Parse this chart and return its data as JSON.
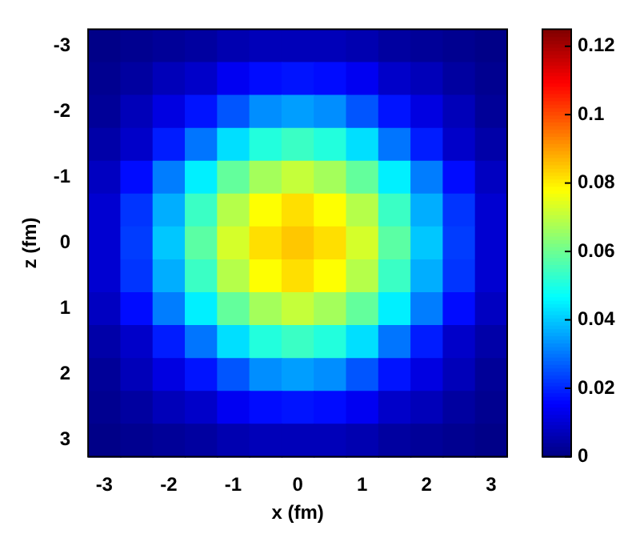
{
  "chart_data": {
    "type": "heatmap",
    "xlabel": "x (fm)",
    "ylabel": "z (fm)",
    "categories": [
      "-3",
      null,
      "-2",
      null,
      "-1",
      null,
      "0",
      null,
      "1",
      null,
      "2",
      null,
      "3"
    ],
    "y_categories": [
      "-3",
      null,
      "-2",
      null,
      "-1",
      null,
      "0",
      null,
      "1",
      null,
      "2",
      null,
      "3"
    ],
    "cells": [
      [
        0.001,
        0.002,
        0.003,
        0.004,
        0.006,
        0.007,
        0.007,
        0.007,
        0.006,
        0.004,
        0.003,
        0.002,
        0.001
      ],
      [
        0.002,
        0.004,
        0.007,
        0.009,
        0.014,
        0.017,
        0.018,
        0.017,
        0.014,
        0.009,
        0.007,
        0.004,
        0.002
      ],
      [
        0.003,
        0.007,
        0.012,
        0.018,
        0.026,
        0.033,
        0.035,
        0.033,
        0.026,
        0.018,
        0.012,
        0.007,
        0.003
      ],
      [
        0.005,
        0.009,
        0.019,
        0.03,
        0.043,
        0.051,
        0.054,
        0.051,
        0.043,
        0.03,
        0.019,
        0.009,
        0.005
      ],
      [
        0.008,
        0.017,
        0.031,
        0.045,
        0.059,
        0.067,
        0.071,
        0.067,
        0.059,
        0.045,
        0.031,
        0.017,
        0.008
      ],
      [
        0.01,
        0.022,
        0.037,
        0.054,
        0.069,
        0.078,
        0.082,
        0.078,
        0.069,
        0.054,
        0.037,
        0.022,
        0.01
      ],
      [
        0.01,
        0.023,
        0.04,
        0.058,
        0.073,
        0.082,
        0.085,
        0.082,
        0.073,
        0.058,
        0.04,
        0.023,
        0.01
      ],
      [
        0.01,
        0.022,
        0.037,
        0.054,
        0.069,
        0.078,
        0.082,
        0.078,
        0.069,
        0.054,
        0.037,
        0.022,
        0.01
      ],
      [
        0.008,
        0.017,
        0.031,
        0.045,
        0.059,
        0.067,
        0.071,
        0.067,
        0.059,
        0.045,
        0.031,
        0.017,
        0.008
      ],
      [
        0.005,
        0.009,
        0.019,
        0.03,
        0.043,
        0.051,
        0.054,
        0.051,
        0.043,
        0.03,
        0.019,
        0.009,
        0.005
      ],
      [
        0.003,
        0.007,
        0.012,
        0.018,
        0.026,
        0.033,
        0.035,
        0.033,
        0.026,
        0.018,
        0.012,
        0.007,
        0.003
      ],
      [
        0.002,
        0.004,
        0.007,
        0.009,
        0.014,
        0.017,
        0.018,
        0.017,
        0.014,
        0.009,
        0.007,
        0.004,
        0.002
      ],
      [
        0.001,
        0.002,
        0.003,
        0.004,
        0.006,
        0.007,
        0.007,
        0.007,
        0.006,
        0.004,
        0.003,
        0.002,
        0.001
      ]
    ],
    "clim": [
      0,
      0.125
    ],
    "cticks": [
      0,
      0.02,
      0.04,
      0.06,
      0.08,
      0.1,
      0.12
    ]
  }
}
